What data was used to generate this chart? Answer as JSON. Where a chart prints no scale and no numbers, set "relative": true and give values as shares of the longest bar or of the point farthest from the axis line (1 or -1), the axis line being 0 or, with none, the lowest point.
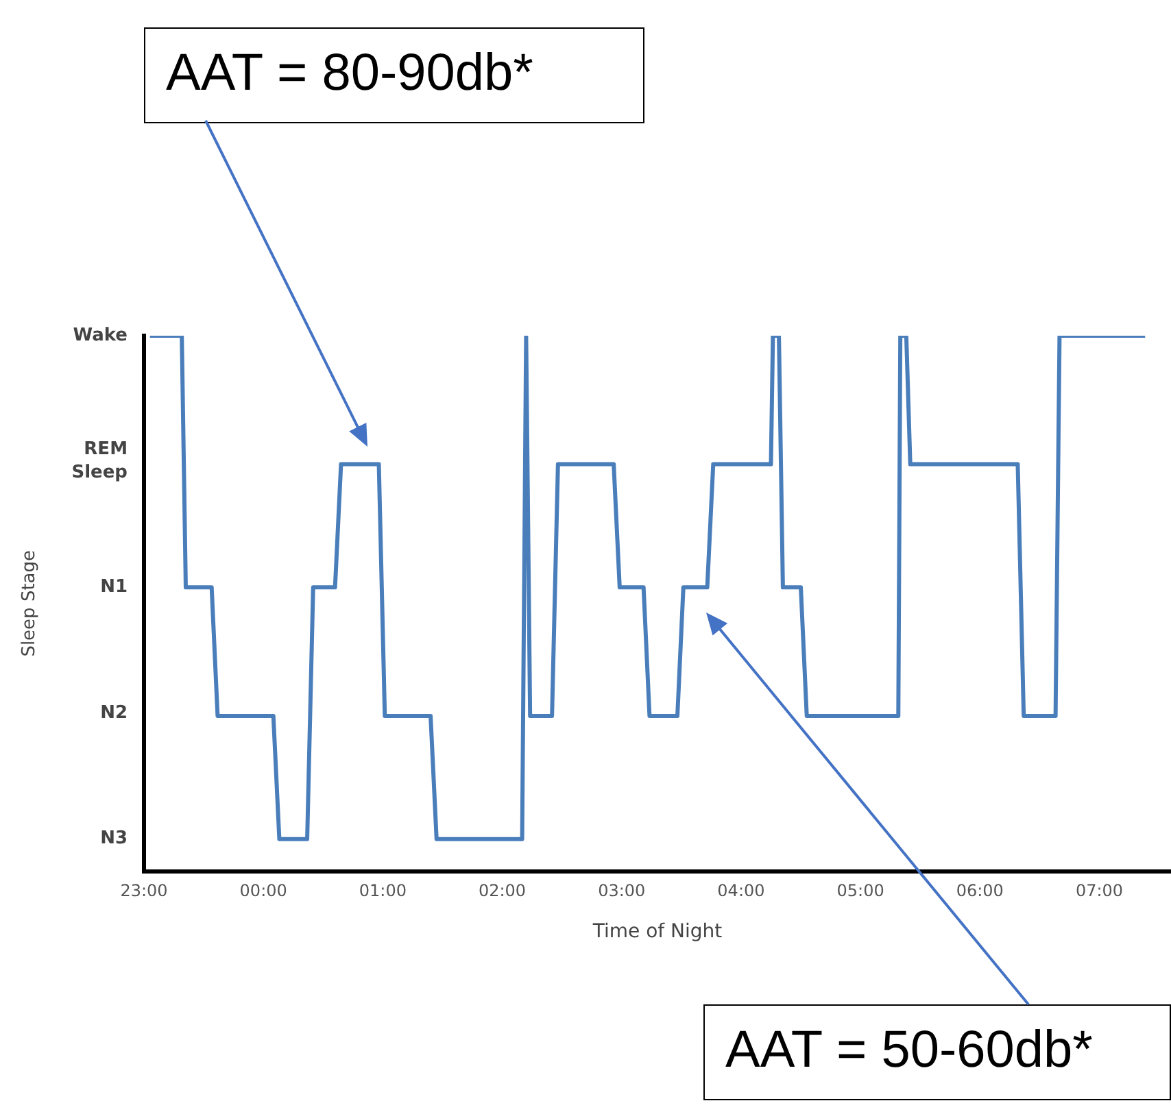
{
  "chart_data": {
    "type": "line",
    "xlabel": "Time of Night",
    "ylabel": "Sleep Stage",
    "relative": true,
    "x": [
      "2000-01-01T23:03",
      "2000-01-01T23:19",
      "2000-01-01T23:21",
      "2000-01-01T23:34",
      "2000-01-01T23:37",
      "2000-01-02T00:05",
      "2000-01-02T00:08",
      "2000-01-02T00:22",
      "2000-01-02T00:25",
      "2000-01-02T00:36",
      "2000-01-02T00:39",
      "2000-01-02T00:58",
      "2000-01-02T01:01",
      "2000-01-02T01:24",
      "2000-01-02T01:27",
      "2000-01-02T02:10",
      "2000-01-02T02:12",
      "2000-01-02T02:14",
      "2000-01-02T02:25",
      "2000-01-02T02:28",
      "2000-01-02T02:56",
      "2000-01-02T02:59",
      "2000-01-02T03:11",
      "2000-01-02T03:14",
      "2000-01-02T03:28",
      "2000-01-02T03:31",
      "2000-01-02T03:43",
      "2000-01-02T03:46",
      "2000-01-02T04:15",
      "2000-01-02T04:16",
      "2000-01-02T04:19",
      "2000-01-02T04:21",
      "2000-01-02T04:30",
      "2000-01-02T04:33",
      "2000-01-02T05:19",
      "2000-01-02T05:20",
      "2000-01-02T05:23",
      "2000-01-02T05:25",
      "2000-01-02T06:19",
      "2000-01-02T06:22",
      "2000-01-02T06:38",
      "2000-01-02T06:40",
      "2000-01-02T07:23"
    ],
    "series": [
      {
        "color": "#4a7ebb",
        "values": [
          1,
          1,
          0.53,
          0.53,
          0.29,
          0.29,
          0.06,
          0.06,
          0.53,
          0.53,
          0.76,
          0.76,
          0.29,
          0.29,
          0.06,
          0.06,
          1,
          0.29,
          0.29,
          0.76,
          0.76,
          0.53,
          0.53,
          0.29,
          0.29,
          0.53,
          0.53,
          0.76,
          0.76,
          1,
          1,
          0.53,
          0.53,
          0.29,
          0.29,
          1,
          1,
          0.76,
          0.76,
          0.29,
          0.29,
          1,
          1
        ]
      }
    ],
    "xlim": [
      "2000-01-01T23:00",
      "2000-01-02T07:36"
    ],
    "xticks": [
      {
        "value": "2000-01-01T23:00",
        "label": "23:00"
      },
      {
        "value": "2000-01-02T00:00",
        "label": "00:00"
      },
      {
        "value": "2000-01-02T01:00",
        "label": "01:00"
      },
      {
        "value": "2000-01-02T02:00",
        "label": "02:00"
      },
      {
        "value": "2000-01-02T03:00",
        "label": "03:00"
      },
      {
        "value": "2000-01-02T04:00",
        "label": "04:00"
      },
      {
        "value": "2000-01-02T05:00",
        "label": "05:00"
      },
      {
        "value": "2000-01-02T06:00",
        "label": "06:00"
      },
      {
        "value": "2000-01-02T07:00",
        "label": "07:00"
      }
    ],
    "marker": "none",
    "line_style": "solid",
    "legend": false,
    "annotations": [
      "Wake",
      "REM Sleep",
      "N1",
      "N2",
      "N3",
      "AAT = 80-90db*",
      "AAT = 50-60db*"
    ]
  }
}
